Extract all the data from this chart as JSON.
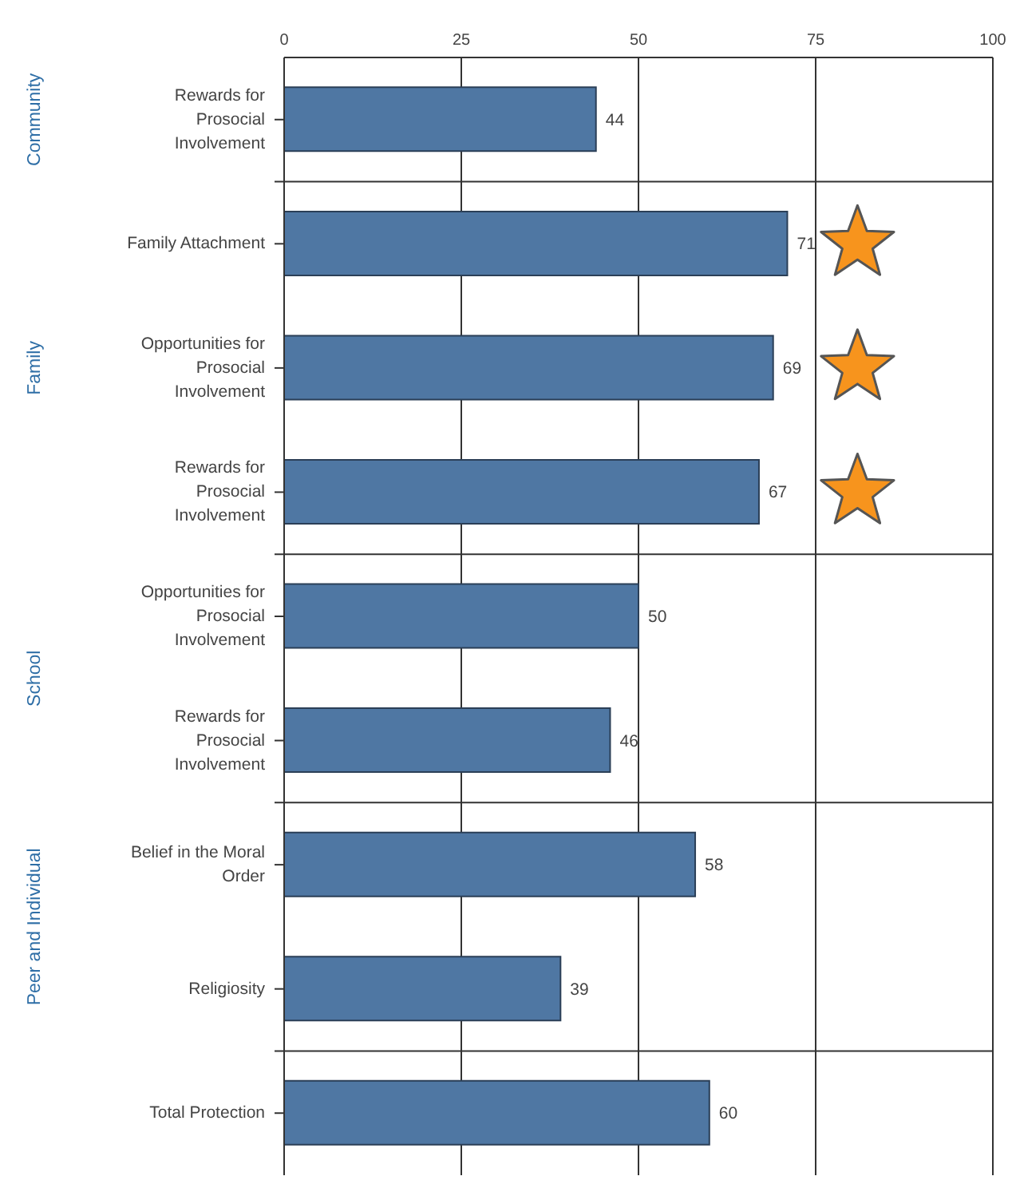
{
  "chart_data": {
    "type": "bar",
    "orientation": "horizontal",
    "categories": [
      "Rewards for Prosocial Involvement",
      "Family Attachment",
      "Opportunities for Prosocial Involvement",
      "Rewards for Prosocial Involvement",
      "Opportunities for Prosocial Involvement",
      "Rewards for Prosocial Involvement",
      "Belief in the Moral Order",
      "Religiosity",
      "Total Protection"
    ],
    "values": [
      44,
      71,
      69,
      67,
      50,
      46,
      58,
      39,
      60
    ],
    "color": "#4f77a3",
    "xlim": [
      0,
      100
    ],
    "xticks": [
      0,
      25,
      50,
      75,
      100
    ],
    "grid": "x",
    "data_labels": true,
    "annotations": [
      "Community",
      "Family",
      "School",
      "Peer and Individual"
    ]
  }
}
